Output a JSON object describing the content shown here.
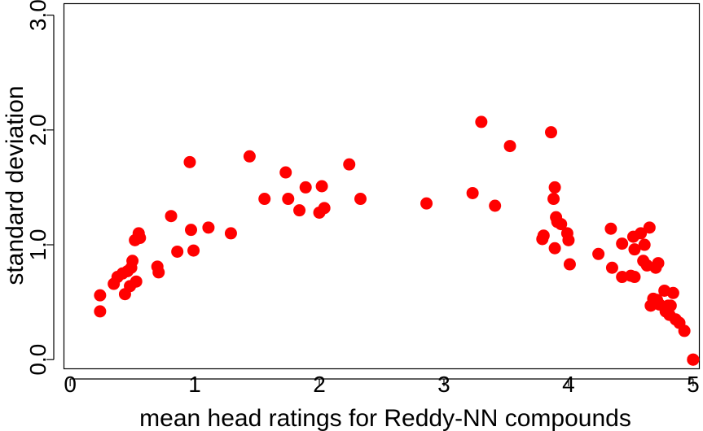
{
  "chart_data": {
    "type": "scatter",
    "title": "",
    "xlabel": "mean head ratings for Reddy-NN compounds",
    "ylabel": "standard deviation",
    "xlim": [
      -0.05,
      5.05
    ],
    "ylim": [
      -0.08,
      3.1
    ],
    "x_ticks": [
      0,
      1,
      2,
      3,
      4,
      5
    ],
    "x_tick_labels": [
      "0",
      "1",
      "2",
      "3",
      "4",
      "5"
    ],
    "y_ticks": [
      0,
      1,
      2,
      3
    ],
    "y_tick_labels": [
      "0.0",
      "1.0",
      "2.0",
      "3.0"
    ],
    "grid": false,
    "legend": "none",
    "point_color": "#ff0000",
    "series": [
      {
        "name": "",
        "x": [
          0.24,
          0.24,
          0.35,
          0.38,
          0.42,
          0.44,
          0.46,
          0.48,
          0.49,
          0.5,
          0.52,
          0.53,
          0.55,
          0.56,
          0.7,
          0.71,
          0.81,
          0.86,
          0.96,
          0.97,
          0.99,
          1.11,
          1.29,
          1.44,
          1.56,
          1.73,
          1.75,
          1.84,
          1.89,
          2.0,
          2.02,
          2.04,
          2.24,
          2.33,
          2.86,
          3.23,
          3.3,
          3.41,
          3.53,
          3.79,
          3.8,
          3.86,
          3.88,
          3.89,
          3.89,
          3.9,
          3.91,
          3.94,
          3.99,
          4.0,
          4.01,
          4.24,
          4.34,
          4.35,
          4.43,
          4.43,
          4.5,
          4.52,
          4.53,
          4.53,
          4.58,
          4.6,
          4.61,
          4.63,
          4.65,
          4.66,
          4.68,
          4.7,
          4.71,
          4.72,
          4.73,
          4.77,
          4.78,
          4.8,
          4.81,
          4.82,
          4.84,
          4.86,
          4.89,
          4.93,
          5.0,
          5.0
        ],
        "y": [
          0.56,
          0.42,
          0.66,
          0.72,
          0.75,
          0.57,
          0.77,
          0.64,
          0.8,
          0.86,
          1.04,
          0.68,
          1.1,
          1.06,
          0.81,
          0.76,
          1.25,
          0.94,
          1.72,
          1.13,
          0.95,
          1.15,
          1.1,
          1.77,
          1.4,
          1.63,
          1.4,
          1.3,
          1.5,
          1.28,
          1.51,
          1.32,
          1.7,
          1.4,
          1.36,
          1.45,
          2.07,
          1.34,
          1.86,
          1.05,
          1.08,
          1.98,
          1.4,
          1.5,
          0.97,
          1.24,
          1.2,
          1.18,
          1.1,
          1.04,
          0.83,
          0.92,
          1.14,
          0.8,
          1.01,
          0.72,
          0.73,
          1.07,
          0.72,
          0.96,
          1.1,
          0.86,
          1.0,
          0.82,
          1.15,
          0.47,
          0.53,
          0.8,
          0.52,
          0.84,
          0.48,
          0.6,
          0.42,
          0.47,
          0.39,
          0.47,
          0.58,
          0.35,
          0.32,
          0.25,
          0.0,
          0.0
        ]
      }
    ]
  }
}
